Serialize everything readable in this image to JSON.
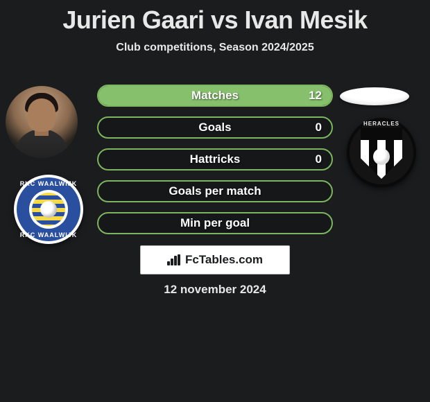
{
  "title": "Jurien Gaari vs Ivan Mesik",
  "subtitle": "Club competitions, Season 2024/2025",
  "date": "12 november 2024",
  "left_player_photo_present": true,
  "right_player_photo_present": false,
  "left_club": {
    "name": "RKC Waalwijk",
    "arc_top": "RKC WAALWIJK",
    "arc_bot": "RKC WAALWIJK",
    "ring_color": "#2a4f9e",
    "stripe_a": "#f6d946",
    "stripe_b": "#2a4f9e"
  },
  "right_club": {
    "name": "Heracles",
    "top_text": "HERACLES",
    "shield_stripes": [
      "#ffffff",
      "#0a0a0a"
    ]
  },
  "bars": [
    {
      "label": "Matches",
      "value": "12",
      "fill_pct": 100,
      "fill_color": "#86c06c",
      "border_color": "#7db65f"
    },
    {
      "label": "Goals",
      "value": "0",
      "fill_pct": 0,
      "fill_color": "#86c06c",
      "border_color": "#7db65f"
    },
    {
      "label": "Hattricks",
      "value": "0",
      "fill_pct": 0,
      "fill_color": "#86c06c",
      "border_color": "#7db65f"
    },
    {
      "label": "Goals per match",
      "value": "",
      "fill_pct": 0,
      "fill_color": "#86c06c",
      "border_color": "#7db65f"
    },
    {
      "label": "Min per goal",
      "value": "",
      "fill_pct": 0,
      "fill_color": "#86c06c",
      "border_color": "#7db65f"
    }
  ],
  "fctables": {
    "text": "FcTables.com"
  }
}
